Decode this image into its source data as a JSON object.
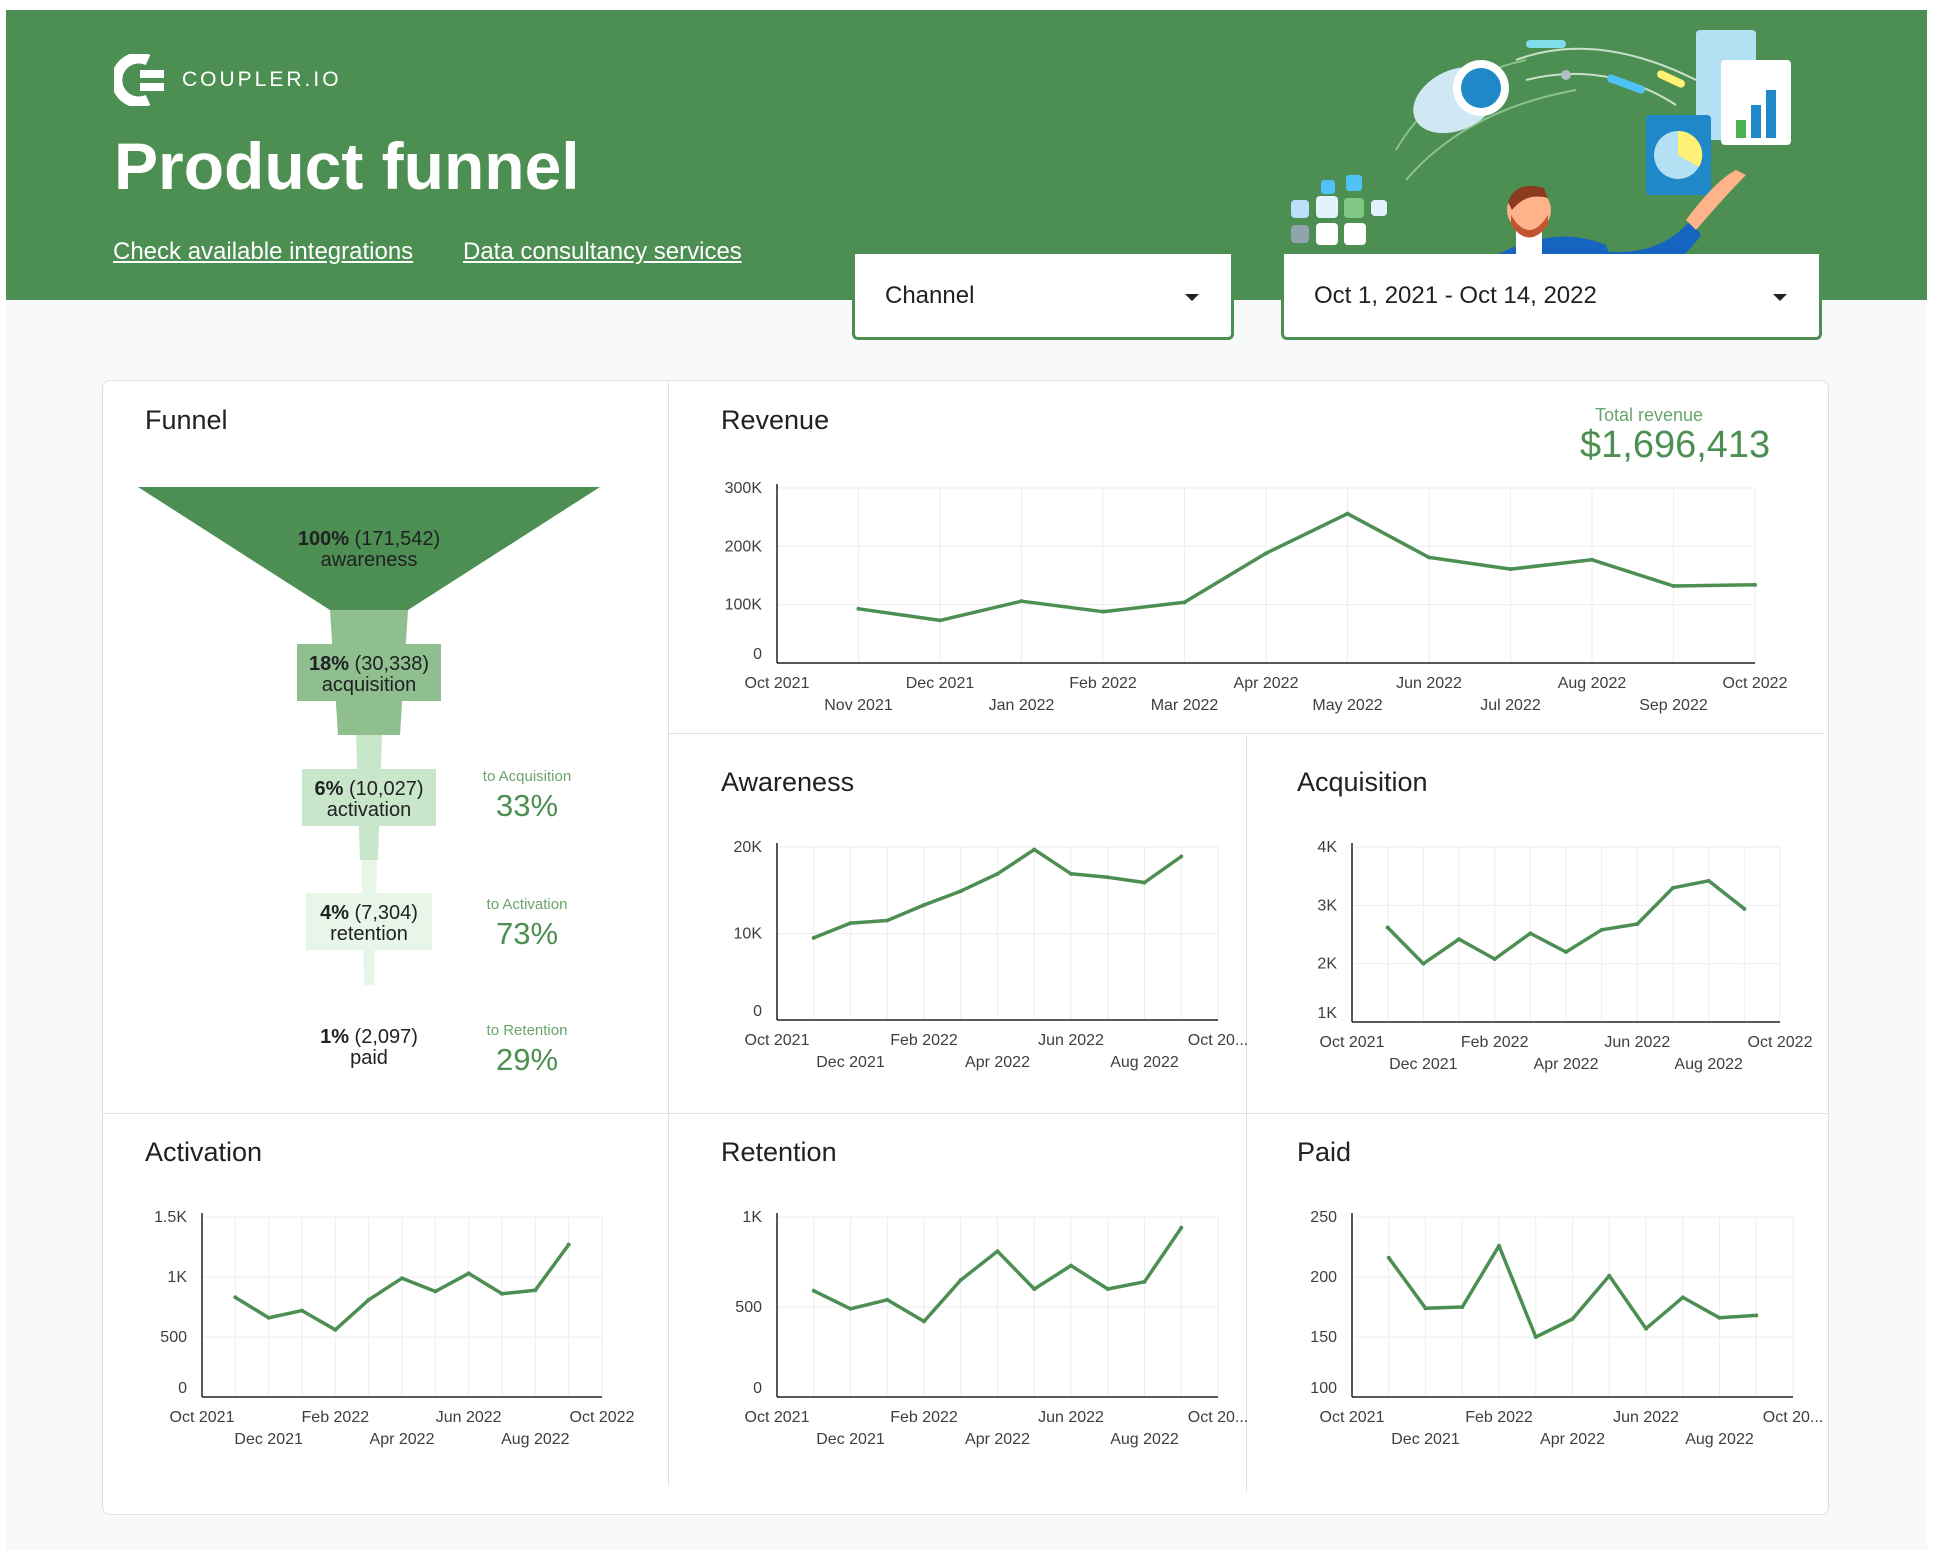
{
  "brand": {
    "name": "COUPLER.IO"
  },
  "header": {
    "title": "Product funnel",
    "links": [
      "Check available integrations",
      "Data consultancy services"
    ]
  },
  "filters": {
    "channel": "Channel",
    "date_range": "Oct 1, 2021 - Oct 14, 2022"
  },
  "colors": {
    "brand_green": "#4d8f52",
    "light_green": "#c8e6c9",
    "mid_green": "#8fbf8f",
    "dark_label_green": "#6aa56e"
  },
  "funnel": {
    "title": "Funnel",
    "stages": [
      {
        "pct": "100%",
        "count": "(171,542)",
        "name": "awareness"
      },
      {
        "pct": "18%",
        "count": "(30,338)",
        "name": "acquisition"
      },
      {
        "pct": "6%",
        "count": "(10,027)",
        "name": "activation"
      },
      {
        "pct": "4%",
        "count": "(7,304)",
        "name": "retention"
      },
      {
        "pct": "1%",
        "count": "(2,097)",
        "name": "paid"
      }
    ],
    "conversions": [
      {
        "caption": "to Acquisition",
        "value": "33%"
      },
      {
        "caption": "to Activation",
        "value": "73%"
      },
      {
        "caption": "to Retention",
        "value": "29%"
      }
    ]
  },
  "revenue": {
    "total_label": "Total revenue",
    "total_value": "$1,696,413"
  },
  "chart_data": [
    {
      "type": "line",
      "title": "Revenue",
      "x_ticks": [
        "Oct 2021",
        "Nov 2021",
        "Dec 2021",
        "Jan 2022",
        "Feb 2022",
        "Mar 2022",
        "Apr 2022",
        "May 2022",
        "Jun 2022",
        "Jul 2022",
        "Aug 2022",
        "Sep 2022",
        "Oct 2022"
      ],
      "y_ticks": [
        "0",
        "100K",
        "200K",
        "300K"
      ],
      "ylim": [
        0,
        300000
      ],
      "x": [
        "Nov 2021",
        "Dec 2021",
        "Jan 2022",
        "Feb 2022",
        "Mar 2022",
        "Apr 2022",
        "May 2022",
        "Jun 2022",
        "Jul 2022",
        "Aug 2022",
        "Sep 2022",
        "Oct 2022"
      ],
      "values": [
        93000,
        73000,
        106000,
        88000,
        104000,
        188000,
        256000,
        181000,
        161000,
        177000,
        132000,
        134000
      ],
      "grid": true
    },
    {
      "type": "line",
      "title": "Awareness",
      "x_ticks": [
        "Oct 2021",
        "Dec 2021",
        "Feb 2022",
        "Apr 2022",
        "Jun 2022",
        "Aug 2022",
        "Oct 20..."
      ],
      "y_ticks": [
        "0",
        "10K",
        "20K"
      ],
      "ylim": [
        0,
        20000
      ],
      "x": [
        "Nov 2021",
        "Dec 2021",
        "Jan 2022",
        "Feb 2022",
        "Mar 2022",
        "Apr 2022",
        "May 2022",
        "Jun 2022",
        "Jul 2022",
        "Aug 2022",
        "Sep 2022"
      ],
      "values": [
        9500,
        11200,
        11500,
        13300,
        14900,
        16900,
        19700,
        16900,
        16500,
        15900,
        18900
      ],
      "grid": true
    },
    {
      "type": "line",
      "title": "Acquisition",
      "x_ticks": [
        "Oct 2021",
        "Dec 2021",
        "Feb 2022",
        "Apr 2022",
        "Jun 2022",
        "Aug 2022",
        "Oct 2022"
      ],
      "y_ticks": [
        "1K",
        "2K",
        "3K",
        "4K"
      ],
      "ylim": [
        1000,
        4000
      ],
      "x": [
        "Nov 2021",
        "Dec 2021",
        "Jan 2022",
        "Feb 2022",
        "Mar 2022",
        "Apr 2022",
        "May 2022",
        "Jun 2022",
        "Jul 2022",
        "Aug 2022",
        "Sep 2022"
      ],
      "values": [
        2620,
        2000,
        2420,
        2080,
        2520,
        2200,
        2580,
        2680,
        3300,
        3420,
        2940
      ],
      "grid": true
    },
    {
      "type": "line",
      "title": "Activation",
      "x_ticks": [
        "Oct 2021",
        "Dec 2021",
        "Feb 2022",
        "Apr 2022",
        "Jun 2022",
        "Aug 2022",
        "Oct 2022"
      ],
      "y_ticks": [
        "0",
        "500",
        "1K",
        "1.5K"
      ],
      "ylim": [
        0,
        1500
      ],
      "x": [
        "Nov 2021",
        "Dec 2021",
        "Jan 2022",
        "Feb 2022",
        "Mar 2022",
        "Apr 2022",
        "May 2022",
        "Jun 2022",
        "Jul 2022",
        "Aug 2022",
        "Sep 2022"
      ],
      "values": [
        830,
        660,
        720,
        560,
        810,
        990,
        880,
        1030,
        860,
        890,
        1270
      ],
      "grid": true
    },
    {
      "type": "line",
      "title": "Retention",
      "x_ticks": [
        "Oct 2021",
        "Dec 2021",
        "Feb 2022",
        "Apr 2022",
        "Jun 2022",
        "Aug 2022",
        "Oct 20..."
      ],
      "y_ticks": [
        "0",
        "500",
        "1K"
      ],
      "ylim": [
        0,
        1000
      ],
      "x": [
        "Nov 2021",
        "Dec 2021",
        "Jan 2022",
        "Feb 2022",
        "Mar 2022",
        "Apr 2022",
        "May 2022",
        "Jun 2022",
        "Jul 2022",
        "Aug 2022",
        "Sep 2022"
      ],
      "values": [
        590,
        490,
        540,
        420,
        650,
        810,
        600,
        730,
        600,
        640,
        940
      ],
      "grid": true
    },
    {
      "type": "line",
      "title": "Paid",
      "x_ticks": [
        "Oct 2021",
        "Dec 2021",
        "Feb 2022",
        "Apr 2022",
        "Jun 2022",
        "Aug 2022",
        "Oct 20..."
      ],
      "y_ticks": [
        "100",
        "150",
        "200",
        "250"
      ],
      "ylim": [
        100,
        250
      ],
      "x": [
        "Nov 2021",
        "Dec 2021",
        "Jan 2022",
        "Feb 2022",
        "Mar 2022",
        "Apr 2022",
        "May 2022",
        "Jun 2022",
        "Jul 2022",
        "Aug 2022",
        "Sep 2022"
      ],
      "values": [
        216,
        174,
        175,
        226,
        150,
        165,
        201,
        157,
        183,
        166,
        168
      ],
      "grid": true
    }
  ]
}
